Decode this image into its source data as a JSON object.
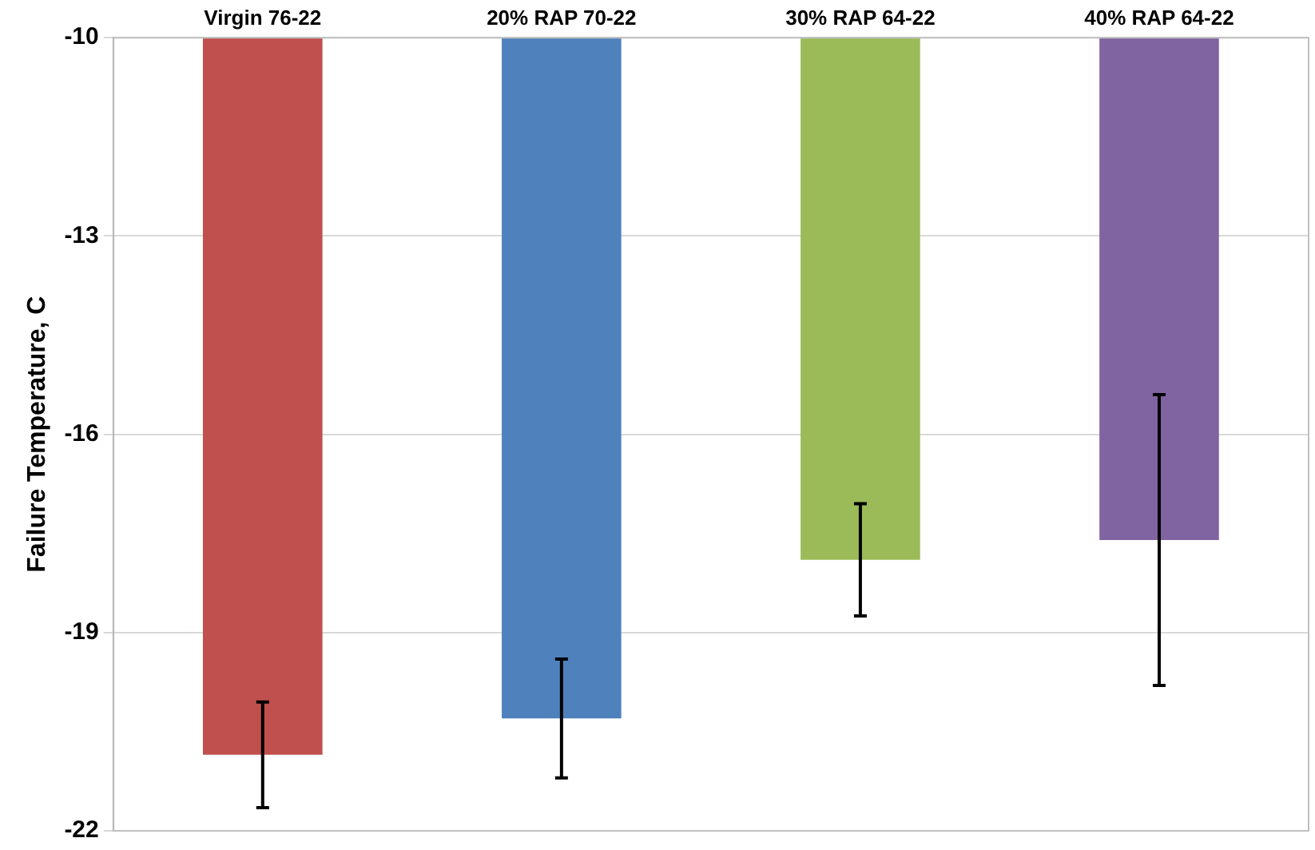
{
  "chart_data": {
    "type": "bar",
    "ylabel": "Failure Temperature, C",
    "categories": [
      "Virgin 76-22",
      "20% RAP 70-22",
      "30% RAP 64-22",
      "40% RAP 64-22"
    ],
    "values": [
      -20.85,
      -20.3,
      -17.9,
      -17.6
    ],
    "errors": [
      0.8,
      0.9,
      0.85,
      2.2
    ],
    "colors": [
      "#c0504d",
      "#4f81bd",
      "#9bbb59",
      "#8064a2"
    ],
    "ylim": [
      -22,
      -10
    ],
    "yticks": [
      -10,
      -13,
      -16,
      -19,
      -22
    ],
    "grid": "y",
    "legend": false
  }
}
